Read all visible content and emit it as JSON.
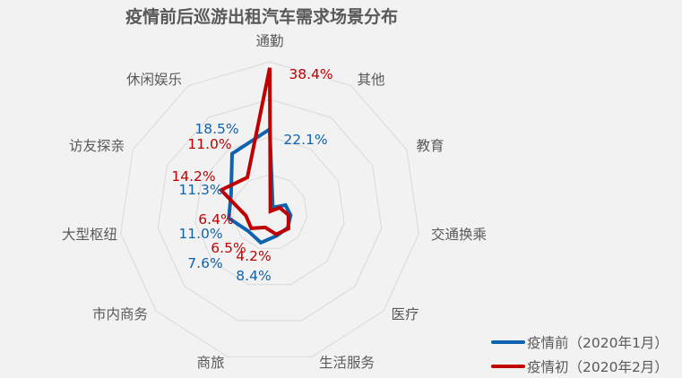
{
  "chart_data": {
    "type": "radar",
    "title": "疫情前后巡游出租汽车需求场景分布",
    "categories": [
      "通勤",
      "其他",
      "教育",
      "交通换乘",
      "医疗",
      "生活服务",
      "商旅",
      "市内商务",
      "大型枢纽",
      "访友探亲",
      "休闲娱乐"
    ],
    "series": [
      {
        "name": "疫情前（2020年1月）",
        "color": "#0E63B0",
        "values": [
          22.1,
          1.5,
          4.6,
          5.6,
          6.3,
          6.5,
          8.4,
          7.6,
          11.0,
          11.3,
          18.5
        ],
        "labels": [
          "22.1%",
          "",
          "",
          "",
          "",
          "",
          "8.4%",
          "7.6%",
          "11.0%",
          "11.3%",
          "18.5%"
        ]
      },
      {
        "name": "疫情初（2020年2月）",
        "color": "#C00000",
        "values": [
          38.4,
          0.3,
          2.9,
          5.0,
          6.6,
          6.1,
          4.2,
          6.5,
          6.4,
          14.2,
          11.0
        ],
        "labels": [
          "38.4%",
          "",
          "",
          "",
          "",
          "",
          "4.2%",
          "6.5%",
          "6.4%",
          "14.2%",
          "11.0%"
        ]
      }
    ],
    "rlim": [
      0,
      40
    ],
    "ring_step": 10,
    "grid": true,
    "legend_position": "bottom-right"
  },
  "legend": {
    "items": [
      {
        "label": "疫情前（2020年1月）",
        "color": "#0E63B0"
      },
      {
        "label": "疫情初（2020年2月）",
        "color": "#C00000"
      }
    ]
  }
}
